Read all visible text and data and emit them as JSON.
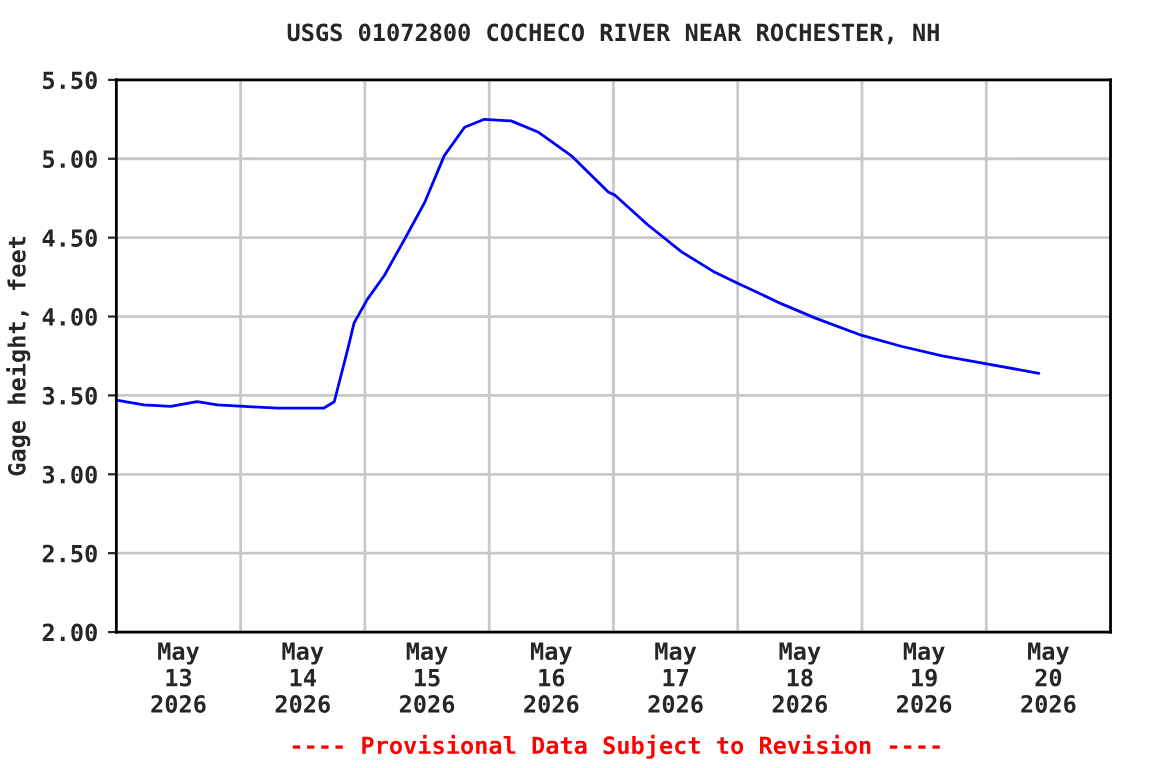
{
  "chart_data": {
    "type": "line",
    "title": "USGS 01072800 COCHECO RIVER NEAR ROCHESTER, NH",
    "ylabel": "Gage height, feet",
    "x": [
      "2026-05-13T00:00",
      "2026-05-13T05:20",
      "2026-05-13T10:30",
      "2026-05-13T15:35",
      "2026-05-13T19:30",
      "2026-05-14T00:40",
      "2026-05-14T07:05",
      "2026-05-14T16:05",
      "2026-05-14T18:05",
      "2026-05-14T19:20",
      "2026-05-14T20:40",
      "2026-05-14T21:55",
      "2026-05-15T00:30",
      "2026-05-15T03:45",
      "2026-05-15T07:40",
      "2026-05-15T11:30",
      "2026-05-15T15:20",
      "2026-05-15T19:15",
      "2026-05-15T23:05",
      "2026-05-16T04:15",
      "2026-05-16T09:25",
      "2026-05-16T15:50",
      "2026-05-16T23:00",
      "2026-05-17T00:15",
      "2026-05-17T06:40",
      "2026-05-17T13:10",
      "2026-05-17T19:35",
      "2026-05-18T00:05",
      "2026-05-18T08:30",
      "2026-05-18T15:00",
      "2026-05-19T00:00",
      "2026-05-19T07:45",
      "2026-05-19T15:30",
      "2026-05-20T00:05",
      "2026-05-20T10:10"
    ],
    "series": [
      {
        "color": "#0000ff",
        "values": [
          3.47,
          3.44,
          3.43,
          3.46,
          3.44,
          3.43,
          3.42,
          3.42,
          3.46,
          3.62,
          3.79,
          3.96,
          4.11,
          4.26,
          4.49,
          4.72,
          5.02,
          5.2,
          5.25,
          5.24,
          5.17,
          5.02,
          4.79,
          4.77,
          4.58,
          4.41,
          4.28,
          4.21,
          4.08,
          3.99,
          3.88,
          3.81,
          3.75,
          3.7,
          3.64
        ]
      }
    ],
    "xlim": [
      "2026-05-13T00:00",
      "2026-05-21T00:00"
    ],
    "xticks": [
      {
        "value": "2026-05-13T12:00",
        "label": "May\n13\n2026"
      },
      {
        "value": "2026-05-14T12:00",
        "label": "May\n14\n2026"
      },
      {
        "value": "2026-05-15T12:00",
        "label": "May\n15\n2026"
      },
      {
        "value": "2026-05-16T12:00",
        "label": "May\n16\n2026"
      },
      {
        "value": "2026-05-17T12:00",
        "label": "May\n17\n2026"
      },
      {
        "value": "2026-05-18T12:00",
        "label": "May\n18\n2026"
      },
      {
        "value": "2026-05-19T12:00",
        "label": "May\n19\n2026"
      },
      {
        "value": "2026-05-20T12:00",
        "label": "May\n20\n2026"
      },
      {
        "value": "2026-05-14T00:00",
        "label": null
      },
      {
        "value": "2026-05-15T00:00",
        "label": null
      },
      {
        "value": "2026-05-16T00:00",
        "label": null
      },
      {
        "value": "2026-05-17T00:00",
        "label": null
      },
      {
        "value": "2026-05-18T00:00",
        "label": null
      },
      {
        "value": "2026-05-19T00:00",
        "label": null
      },
      {
        "value": "2026-05-20T00:00",
        "label": null
      }
    ],
    "ylim": [
      2.0,
      5.5
    ],
    "yticks": [
      {
        "value": 2.0,
        "label": "2.00"
      },
      {
        "value": 2.5,
        "label": "2.50"
      },
      {
        "value": 3.0,
        "label": "3.00"
      },
      {
        "value": 3.5,
        "label": "3.50"
      },
      {
        "value": 4.0,
        "label": "4.00"
      },
      {
        "value": 4.5,
        "label": "4.50"
      },
      {
        "value": 5.0,
        "label": "5.00"
      },
      {
        "value": 5.5,
        "label": "5.50"
      }
    ],
    "grid": true,
    "legend": false,
    "marker": "none",
    "line_style": "solid",
    "annotations": [
      "---- Provisional Data Subject to Revision ----"
    ]
  }
}
